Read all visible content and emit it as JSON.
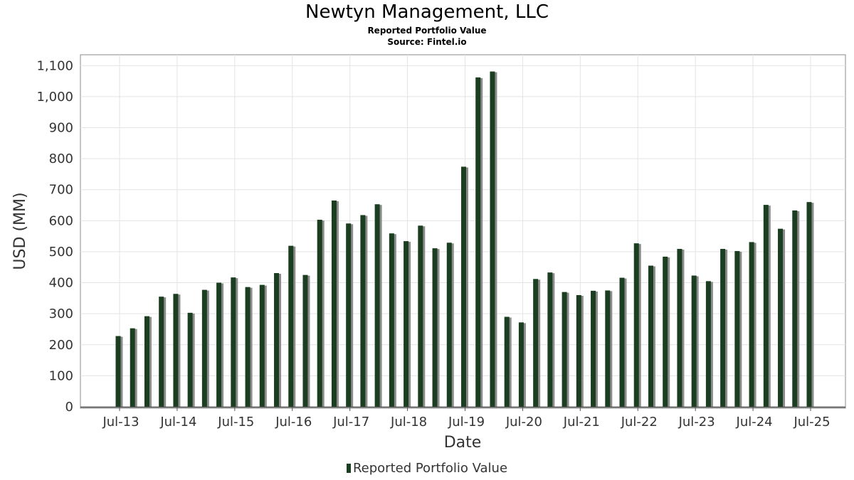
{
  "chart_data": {
    "type": "bar",
    "title": "Newtyn Management, LLC",
    "subtitle": "Reported Portfolio Value",
    "source": "Source: Fintel.io",
    "xlabel": "Date",
    "ylabel": "USD (MM)",
    "ylim": [
      0,
      1135
    ],
    "yticks": [
      0,
      100,
      200,
      300,
      400,
      500,
      600,
      700,
      800,
      900,
      1000,
      1100
    ],
    "ytick_labels": [
      "0",
      "100",
      "200",
      "300",
      "400",
      "500",
      "600",
      "700",
      "800",
      "900",
      "1,000",
      "1,100"
    ],
    "xtick_labels": [
      "Jul-13",
      "Jul-14",
      "Jul-15",
      "Jul-16",
      "Jul-17",
      "Jul-18",
      "Jul-19",
      "Jul-20",
      "Jul-21",
      "Jul-22",
      "Jul-23",
      "Jul-24",
      "Jul-25"
    ],
    "grid": true,
    "legend_position": "bottom",
    "series": [
      {
        "name": "Reported Portfolio Value",
        "color": "#1a3e1f",
        "shadow_color": "#8c8c8c",
        "values": [
          228,
          253,
          292,
          355,
          364,
          303,
          377,
          400,
          417,
          386,
          393,
          431,
          519,
          425,
          603,
          665,
          591,
          618,
          653,
          559,
          534,
          584,
          511,
          529,
          774,
          1062,
          1081,
          290,
          272,
          412,
          433,
          370,
          360,
          374,
          375,
          416,
          527,
          455,
          484,
          509,
          423,
          405,
          509,
          502,
          531,
          651,
          574,
          633,
          660
        ]
      }
    ]
  }
}
